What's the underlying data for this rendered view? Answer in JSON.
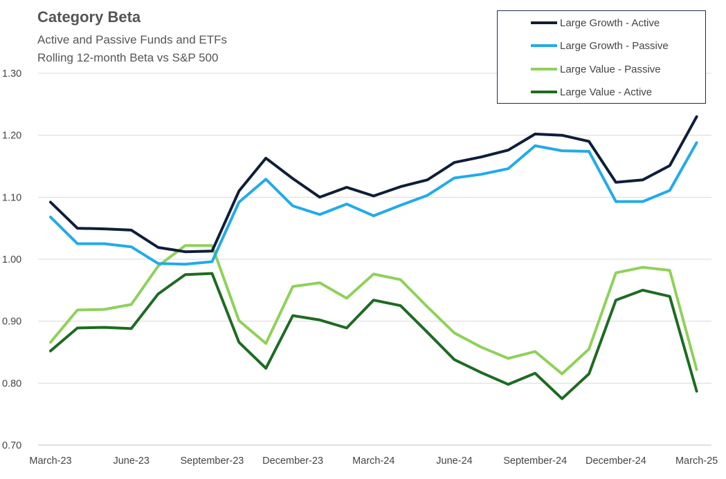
{
  "chart_data": {
    "type": "line",
    "title": "Category Beta",
    "subtitle": [
      "Active and Passive Funds and ETFs",
      "Rolling 12-month Beta vs S&P 500"
    ],
    "xlabel": "",
    "ylabel": "",
    "ylim": [
      0.7,
      1.3
    ],
    "yticks": [
      "0.70",
      "0.80",
      "0.90",
      "1.00",
      "1.10",
      "1.20",
      "1.30"
    ],
    "x": [
      "2023-03",
      "2023-04",
      "2023-05",
      "2023-06",
      "2023-07",
      "2023-08",
      "2023-09",
      "2023-10",
      "2023-11",
      "2023-12",
      "2024-01",
      "2024-02",
      "2024-03",
      "2024-04",
      "2024-05",
      "2024-06",
      "2024-07",
      "2024-08",
      "2024-09",
      "2024-10",
      "2024-11",
      "2024-12",
      "2025-01",
      "2025-02",
      "2025-03"
    ],
    "xticks": [
      {
        "index": 0,
        "label": "March-23"
      },
      {
        "index": 3,
        "label": "June-23"
      },
      {
        "index": 6,
        "label": "September-23"
      },
      {
        "index": 9,
        "label": "December-23"
      },
      {
        "index": 12,
        "label": "March-24"
      },
      {
        "index": 15,
        "label": "June-24"
      },
      {
        "index": 18,
        "label": "September-24"
      },
      {
        "index": 21,
        "label": "December-24"
      },
      {
        "index": 24,
        "label": "March-25"
      }
    ],
    "grid": "horizontal",
    "legend": "top-right",
    "series": [
      {
        "name": "Large Growth - Active",
        "color": "#0e1e3a",
        "values": [
          1.092,
          1.05,
          1.049,
          1.047,
          1.019,
          1.012,
          1.013,
          1.11,
          1.163,
          1.13,
          1.1,
          1.116,
          1.102,
          1.117,
          1.128,
          1.156,
          1.165,
          1.176,
          1.202,
          1.2,
          1.19,
          1.124,
          1.128,
          1.151,
          1.23
        ]
      },
      {
        "name": "Large Growth - Passive",
        "color": "#22aaea",
        "values": [
          1.068,
          1.025,
          1.025,
          1.02,
          0.993,
          0.992,
          0.996,
          1.092,
          1.129,
          1.086,
          1.072,
          1.089,
          1.07,
          1.087,
          1.103,
          1.131,
          1.137,
          1.146,
          1.183,
          1.175,
          1.174,
          1.093,
          1.093,
          1.111,
          1.188
        ]
      },
      {
        "name": "Large Value - Passive",
        "color": "#8fd15a",
        "values": [
          0.866,
          0.918,
          0.919,
          0.927,
          0.989,
          1.022,
          1.022,
          0.901,
          0.864,
          0.956,
          0.962,
          0.937,
          0.976,
          0.967,
          0.923,
          0.881,
          0.858,
          0.84,
          0.851,
          0.815,
          0.855,
          0.978,
          0.987,
          0.982,
          0.822
        ]
      },
      {
        "name": "Large Value - Active",
        "color": "#1e6b22",
        "values": [
          0.852,
          0.889,
          0.89,
          0.888,
          0.944,
          0.975,
          0.977,
          0.866,
          0.824,
          0.909,
          0.902,
          0.889,
          0.934,
          0.925,
          0.882,
          0.838,
          0.817,
          0.798,
          0.816,
          0.775,
          0.815,
          0.934,
          0.95,
          0.94,
          0.787
        ]
      }
    ]
  }
}
